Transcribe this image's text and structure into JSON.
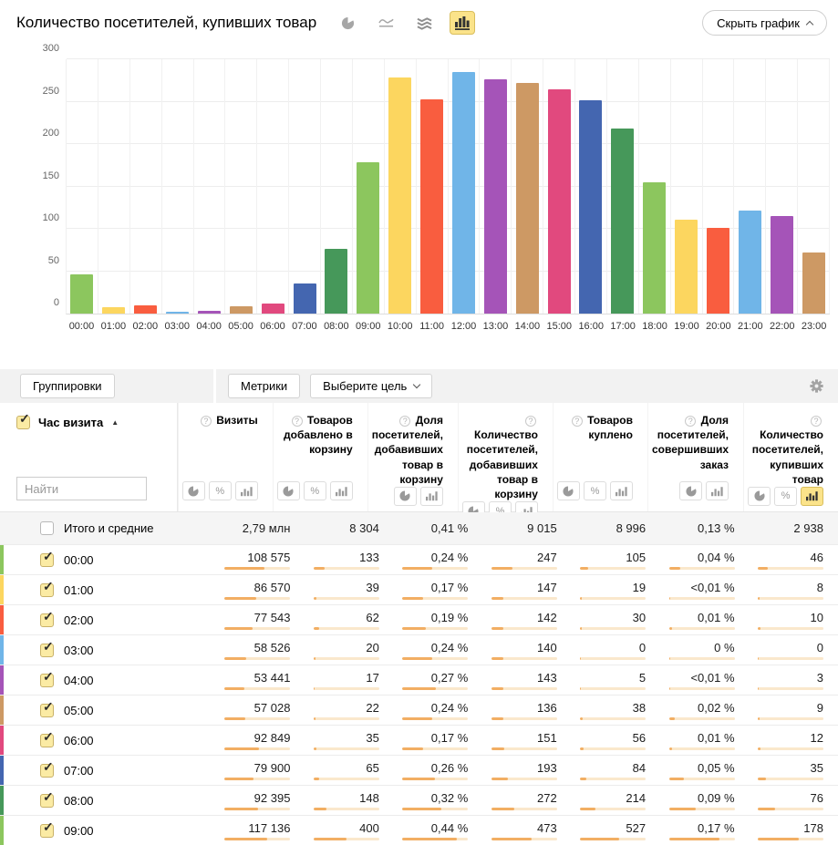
{
  "header": {
    "title": "Количество посетителей, купивших товар",
    "hide_chart_label": "Скрыть график",
    "chart_types": [
      {
        "name": "pie-chart",
        "selected": false
      },
      {
        "name": "line-chart",
        "selected": false
      },
      {
        "name": "stacked-area-chart",
        "selected": false
      },
      {
        "name": "bar-chart",
        "selected": true
      }
    ]
  },
  "chart_data": {
    "type": "bar",
    "title": "Количество посетителей, купивших товар",
    "categories": [
      "00:00",
      "01:00",
      "02:00",
      "03:00",
      "04:00",
      "05:00",
      "06:00",
      "07:00",
      "08:00",
      "09:00",
      "10:00",
      "11:00",
      "12:00",
      "13:00",
      "14:00",
      "15:00",
      "16:00",
      "17:00",
      "18:00",
      "19:00",
      "20:00",
      "21:00",
      "22:00",
      "23:00"
    ],
    "values": [
      46,
      8,
      10,
      0,
      3,
      9,
      12,
      35,
      76,
      178,
      278,
      253,
      285,
      276,
      272,
      265,
      252,
      218,
      155,
      111,
      101,
      122,
      115,
      72
    ],
    "bar_colors": [
      "#8CC65E",
      "#FCD65F",
      "#F95D3F",
      "#70B5E8",
      "#A554B8",
      "#CD9964",
      "#E1497E",
      "#4466B0",
      "#46985A",
      "#8CC65E",
      "#FCD65F",
      "#F95D3F",
      "#70B5E8",
      "#A554B8",
      "#CD9964",
      "#E1497E",
      "#4466B0",
      "#46985A",
      "#8CC65E",
      "#FCD65F",
      "#F95D3F",
      "#70B5E8",
      "#A554B8",
      "#CD9964"
    ],
    "xlabel": "",
    "ylabel": "",
    "ylim": [
      0,
      300
    ],
    "yticks": [
      0,
      50,
      100,
      150,
      200,
      250,
      300
    ],
    "grid": true,
    "legend": false
  },
  "controls": {
    "groupings_label": "Группировки",
    "metrics_label": "Метрики",
    "goal_label": "Выберите цель"
  },
  "table": {
    "row_dimension": {
      "label": "Час визита",
      "sort": "asc",
      "search_placeholder": "Найти"
    },
    "columns": [
      {
        "label": "Визиты",
        "toggles": [
          "pie",
          "percent",
          "bars"
        ],
        "active": null
      },
      {
        "label": "Товаров добавлено в корзину",
        "toggles": [
          "pie",
          "percent",
          "bars"
        ],
        "active": null
      },
      {
        "label": "Доля посетителей, добавивших товар в корзину",
        "toggles": [
          "pie",
          "bars"
        ],
        "active": null
      },
      {
        "label": "Количество посетителей, добавивших товар в корзину",
        "toggles": [
          "pie",
          "percent",
          "bars"
        ],
        "active": null
      },
      {
        "label": "Товаров куплено",
        "toggles": [
          "pie",
          "percent",
          "bars"
        ],
        "active": null
      },
      {
        "label": "Доля посетителей, совершивших заказ",
        "toggles": [
          "pie",
          "bars"
        ],
        "active": null
      },
      {
        "label": "Количество посетителей, купивших товар",
        "toggles": [
          "pie",
          "percent",
          "bars"
        ],
        "active": "bars"
      }
    ],
    "totals": {
      "label": "Итого и средние",
      "checked": false,
      "values": [
        "2,79 млн",
        "8 304",
        "0,41 %",
        "9 015",
        "8 996",
        "0,13 %",
        "2 938"
      ]
    },
    "rows": [
      {
        "hour": "00:00",
        "color": "#8CC65E",
        "checked": true,
        "values": [
          "108 575",
          "133",
          "0,24 %",
          "247",
          "105",
          "0,04 %",
          "46"
        ],
        "fills": [
          60,
          17,
          45,
          32,
          12,
          18,
          16
        ]
      },
      {
        "hour": "01:00",
        "color": "#FCD65F",
        "checked": true,
        "values": [
          "86 570",
          "39",
          "0,17 %",
          "147",
          "19",
          "<0,01 %",
          "8"
        ],
        "fills": [
          48,
          5,
          32,
          19,
          2,
          2,
          3
        ]
      },
      {
        "hour": "02:00",
        "color": "#F95D3F",
        "checked": true,
        "values": [
          "77 543",
          "62",
          "0,19 %",
          "142",
          "30",
          "0,01 %",
          "10"
        ],
        "fills": [
          43,
          8,
          36,
          18,
          3,
          5,
          4
        ]
      },
      {
        "hour": "03:00",
        "color": "#70B5E8",
        "checked": true,
        "values": [
          "58 526",
          "20",
          "0,24 %",
          "140",
          "0",
          "0 %",
          "0"
        ],
        "fills": [
          33,
          3,
          45,
          18,
          1,
          1,
          1
        ]
      },
      {
        "hour": "04:00",
        "color": "#A554B8",
        "checked": true,
        "values": [
          "53 441",
          "17",
          "0,27 %",
          "143",
          "5",
          "<0,01 %",
          "3"
        ],
        "fills": [
          30,
          2,
          51,
          19,
          1,
          2,
          1
        ]
      },
      {
        "hour": "05:00",
        "color": "#CD9964",
        "checked": true,
        "values": [
          "57 028",
          "22",
          "0,24 %",
          "136",
          "38",
          "0,02 %",
          "9"
        ],
        "fills": [
          32,
          3,
          45,
          18,
          4,
          9,
          3
        ]
      },
      {
        "hour": "06:00",
        "color": "#E1497E",
        "checked": true,
        "values": [
          "92 849",
          "35",
          "0,17 %",
          "151",
          "56",
          "0,01 %",
          "12"
        ],
        "fills": [
          52,
          4,
          32,
          20,
          6,
          5,
          4
        ]
      },
      {
        "hour": "07:00",
        "color": "#4466B0",
        "checked": true,
        "values": [
          "79 900",
          "65",
          "0,26 %",
          "193",
          "84",
          "0,05 %",
          "35"
        ],
        "fills": [
          44,
          8,
          49,
          25,
          9,
          23,
          12
        ]
      },
      {
        "hour": "08:00",
        "color": "#46985A",
        "checked": true,
        "values": [
          "92 395",
          "148",
          "0,32 %",
          "272",
          "214",
          "0,09 %",
          "76"
        ],
        "fills": [
          51,
          19,
          60,
          35,
          24,
          41,
          27
        ]
      },
      {
        "hour": "09:00",
        "color": "#8CC65E",
        "checked": true,
        "values": [
          "117 136",
          "400",
          "0,44 %",
          "473",
          "527",
          "0,17 %",
          "178"
        ],
        "fills": [
          65,
          50,
          83,
          61,
          59,
          77,
          62
        ]
      }
    ]
  }
}
